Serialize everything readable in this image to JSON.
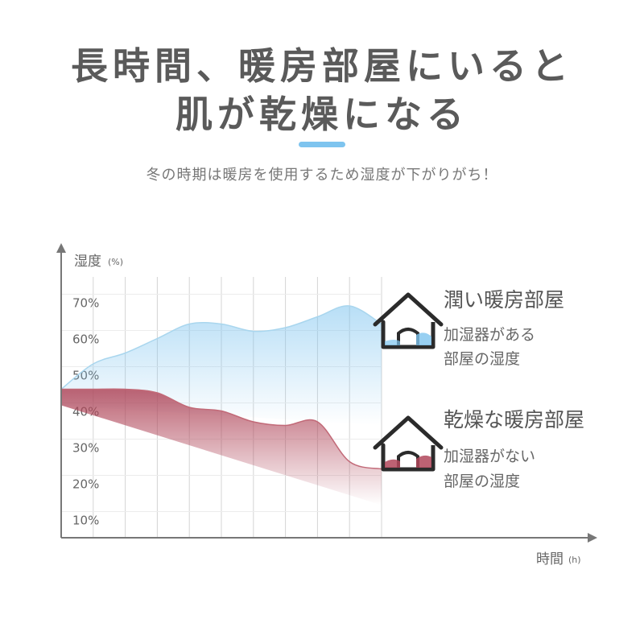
{
  "header": {
    "title_line1": "長時間、暖房部屋にいると",
    "title_line2": "肌が乾燥になる",
    "subtitle": "冬の時期は暖房を使用するため湿度が下がりがち！"
  },
  "colors": {
    "accent": "#7ec4ef",
    "moist_line": "#a9d6ee",
    "moist_fill": "#7ec4ef",
    "dry_line": "#c26a78",
    "dry_fill": "#b0475a",
    "grid": "#d4d4d4",
    "axis": "#777777"
  },
  "chart_data": {
    "type": "area",
    "y_axis_label": "湿度",
    "y_axis_unit": "(%)",
    "x_axis_label": "時間",
    "x_axis_unit": "(h)",
    "y_ticks": [
      {
        "label": "70%",
        "value": 70
      },
      {
        "label": "60%",
        "value": 60
      },
      {
        "label": "50%",
        "value": 50
      },
      {
        "label": "40%",
        "value": 40
      },
      {
        "label": "30%",
        "value": 30
      },
      {
        "label": "20%",
        "value": 20
      },
      {
        "label": "10%",
        "value": 10
      }
    ],
    "ylim": [
      5,
      77
    ],
    "xlim": [
      0,
      10
    ],
    "grid_x": [
      1,
      2,
      3,
      4,
      5,
      6,
      7,
      8,
      9,
      10
    ],
    "series": [
      {
        "name": "潤い暖房部屋",
        "x": [
          0,
          1,
          2,
          3,
          4,
          5,
          6,
          7,
          8,
          9,
          10
        ],
        "y": [
          46,
          53,
          56,
          60,
          64,
          64,
          62,
          63,
          66,
          69,
          64
        ]
      },
      {
        "name": "乾燥な暖房部屋",
        "x": [
          0,
          1,
          2,
          3,
          4,
          5,
          6,
          7,
          8,
          9,
          10
        ],
        "y": [
          46,
          46,
          46,
          45,
          41,
          40,
          37,
          36,
          37,
          26,
          24
        ]
      }
    ],
    "legend": [
      {
        "title": "潤い暖房部屋",
        "desc_line1": "加湿器がある",
        "desc_line2": "部屋の湿度",
        "icon": "house-moist-icon"
      },
      {
        "title": "乾燥な暖房部屋",
        "desc_line1": "加湿器がない",
        "desc_line2": "部屋の湿度",
        "icon": "house-dry-icon"
      }
    ]
  }
}
